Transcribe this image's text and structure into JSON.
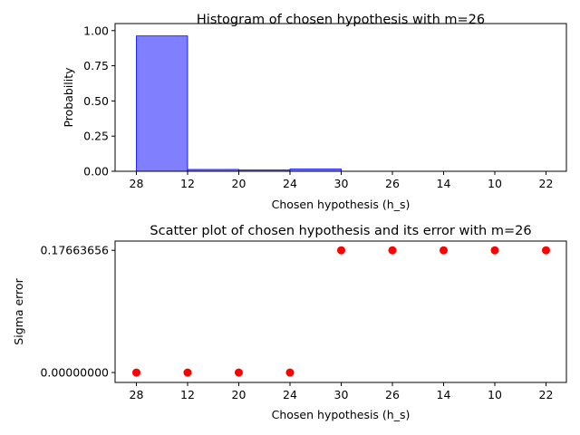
{
  "chart_data": [
    {
      "type": "bar",
      "title": "Histogram of chosen hypothesis with m=26",
      "xlabel": "Chosen hypothesis (h_s)",
      "ylabel": "Probability",
      "categories": [
        "28",
        "12",
        "20",
        "24",
        "30",
        "26",
        "14",
        "10",
        "22"
      ],
      "values": [
        0.962,
        0.013,
        0.009,
        0.016,
        0,
        0,
        0,
        0,
        0
      ],
      "ylim": [
        0,
        1.05
      ],
      "yticks": [
        "0.00",
        "0.25",
        "0.50",
        "0.75",
        "1.00"
      ],
      "ytick_values": [
        0,
        0.25,
        0.5,
        0.75,
        1.0
      ],
      "bar_color": "#8080ff",
      "bar_edge_color": "#0000ff",
      "grid": false
    },
    {
      "type": "scatter",
      "title": "Scatter plot of chosen hypothesis and its error with m=26",
      "xlabel": "Chosen hypothesis (h_s)",
      "ylabel": "Sigma error",
      "categories": [
        "28",
        "12",
        "20",
        "24",
        "30",
        "26",
        "14",
        "10",
        "22"
      ],
      "values": [
        0.0,
        0.0,
        0.0,
        0.0,
        0.17663656,
        0.17663656,
        0.17663656,
        0.17663656,
        0.17663656
      ],
      "yticks": [
        "0.00000000",
        "0.17663656"
      ],
      "ytick_values": [
        0.0,
        0.17663656
      ],
      "ylim": [
        -0.0143,
        0.19
      ],
      "point_color": "#ff0000",
      "grid": false
    }
  ]
}
